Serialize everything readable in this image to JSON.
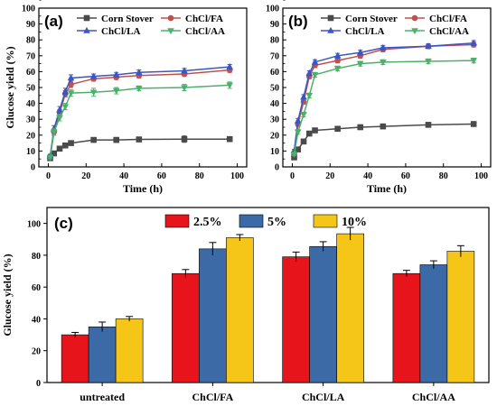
{
  "chart_data": [
    {
      "panel": "(a)",
      "type": "line",
      "xlabel": "Time (h)",
      "ylabel": "Glucose yield (%)",
      "xlim": [
        -5,
        105
      ],
      "ylim": [
        0,
        100
      ],
      "xticks": [
        0,
        20,
        40,
        60,
        80,
        100
      ],
      "yticks": [
        0,
        10,
        20,
        30,
        40,
        50,
        60,
        70,
        80,
        90,
        100
      ],
      "legend_position": "top",
      "x": [
        1,
        3,
        6,
        9,
        12,
        24,
        36,
        48,
        72,
        96
      ],
      "series": [
        {
          "name": "Corn Stover",
          "color": "#4a4a4a",
          "marker": "square",
          "values": [
            5.5,
            8.5,
            11.5,
            13.5,
            15,
            17,
            17,
            17.3,
            17.5,
            17.5
          ],
          "errors": [
            1,
            1,
            1,
            1,
            1,
            1,
            1.5,
            1,
            2,
            1
          ]
        },
        {
          "name": "ChCl/FA",
          "color": "#c0504d",
          "marker": "circle",
          "values": [
            6.5,
            22,
            34,
            46,
            52,
            55.5,
            56.5,
            57.5,
            58.5,
            61
          ],
          "errors": [
            1,
            2,
            2,
            2,
            2,
            1.5,
            1.5,
            1.5,
            1.5,
            1.5
          ]
        },
        {
          "name": "ChCl/LA",
          "color": "#3a56c4",
          "marker": "triangle",
          "values": [
            7,
            24,
            36,
            47.5,
            56,
            57,
            58,
            59.5,
            60.5,
            63
          ],
          "errors": [
            1,
            2,
            2,
            2,
            2,
            1.5,
            1.5,
            1.5,
            1.5,
            1.5
          ]
        },
        {
          "name": "ChCl/AA",
          "color": "#4caf6a",
          "marker": "triangle-down",
          "values": [
            6,
            22,
            31,
            38,
            46.5,
            47,
            48,
            49.5,
            50,
            51.5
          ],
          "errors": [
            1,
            2,
            2,
            2,
            2,
            2.5,
            2,
            1.5,
            2,
            2
          ]
        }
      ]
    },
    {
      "panel": "(b)",
      "type": "line",
      "xlabel": "Time (h)",
      "ylabel": "",
      "xlim": [
        -5,
        105
      ],
      "ylim": [
        0,
        100
      ],
      "xticks": [
        0,
        20,
        40,
        60,
        80,
        100
      ],
      "yticks": [
        0,
        10,
        20,
        30,
        40,
        50,
        60,
        70,
        80,
        90,
        100
      ],
      "legend_position": "top",
      "x": [
        1,
        3,
        6,
        9,
        12,
        24,
        36,
        48,
        72,
        96
      ],
      "series": [
        {
          "name": "Corn Stover",
          "color": "#4a4a4a",
          "marker": "square",
          "values": [
            6,
            11,
            16,
            21,
            23,
            24,
            25,
            25.5,
            26.5,
            27
          ],
          "errors": [
            0.5,
            0.5,
            0.5,
            0.5,
            0.5,
            0.5,
            0.5,
            0.5,
            0.5,
            0.5
          ]
        },
        {
          "name": "ChCl/FA",
          "color": "#c0504d",
          "marker": "circle",
          "values": [
            9,
            27,
            41,
            57,
            64,
            67,
            70,
            74,
            76,
            77
          ],
          "errors": [
            1,
            1.5,
            1.5,
            1.5,
            1.5,
            1.5,
            1.5,
            1.5,
            1.5,
            1.5
          ]
        },
        {
          "name": "ChCl/LA",
          "color": "#3a56c4",
          "marker": "triangle",
          "values": [
            10,
            29,
            44,
            59,
            66,
            70,
            72,
            75,
            76,
            78
          ],
          "errors": [
            1,
            1.5,
            1.5,
            1.5,
            1.5,
            1.5,
            1.5,
            1.5,
            1.5,
            1.5
          ]
        },
        {
          "name": "ChCl/AA",
          "color": "#4caf6a",
          "marker": "triangle-down",
          "values": [
            8,
            22,
            33,
            45,
            58,
            62,
            65,
            66,
            66.5,
            67
          ],
          "errors": [
            1,
            1.5,
            1.5,
            1.5,
            1.5,
            1.5,
            1.5,
            1.5,
            1.5,
            1.5
          ]
        }
      ]
    },
    {
      "panel": "(c)",
      "type": "bar",
      "xlabel": "",
      "ylabel": "Glucose yield (%)",
      "ylim": [
        0,
        110
      ],
      "yticks": [
        0,
        20,
        40,
        60,
        80,
        100
      ],
      "legend_position": "top-center",
      "categories": [
        "untreated",
        "ChCl/FA",
        "ChCl/LA",
        "ChCl/AA"
      ],
      "series": [
        {
          "name": "2.5%",
          "color": "#e8141b",
          "values": [
            30,
            68.5,
            79,
            68.5
          ],
          "errors": [
            1.5,
            2.5,
            3,
            2
          ]
        },
        {
          "name": "5%",
          "color": "#3b6aa7",
          "values": [
            35,
            84,
            85.5,
            74
          ],
          "errors": [
            3,
            4,
            3,
            2.5
          ]
        },
        {
          "name": "10%",
          "color": "#f5c518",
          "values": [
            40,
            91,
            93.5,
            82.5
          ],
          "errors": [
            1.5,
            2,
            4,
            3.5
          ]
        }
      ]
    }
  ]
}
